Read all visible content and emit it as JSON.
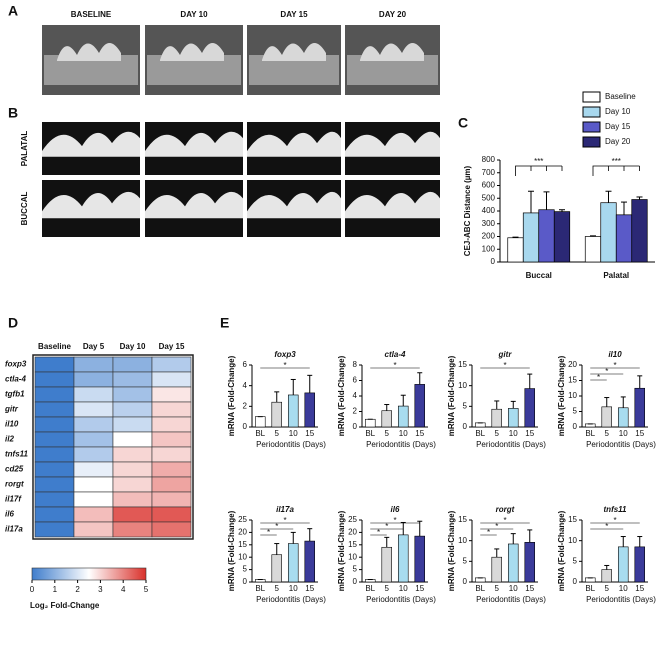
{
  "panels": [
    "A",
    "B",
    "C",
    "D",
    "E"
  ],
  "panel_a": {
    "columns": [
      "BASELINE",
      "DAY 10",
      "DAY 15",
      "DAY 20"
    ]
  },
  "panel_b": {
    "rows": [
      "PALATAL",
      "BUCCAL"
    ]
  },
  "chart_data": [
    {
      "type": "grouped_bar",
      "ylabel": "CEJ-ABC Distance (µm)",
      "categories": [
        "Buccal",
        "Palatal"
      ],
      "series": [
        {
          "name": "Baseline",
          "color": "#ffffff",
          "values": [
            190,
            200
          ],
          "errors": [
            5,
            5
          ]
        },
        {
          "name": "Day 10",
          "color": "#a8d8ee",
          "values": [
            385,
            465
          ],
          "errors": [
            170,
            90
          ]
        },
        {
          "name": "Day 15",
          "color": "#5a5ac8",
          "values": [
            410,
            370
          ],
          "errors": [
            140,
            100
          ]
        },
        {
          "name": "Day 20",
          "color": "#2b2875",
          "values": [
            395,
            490
          ],
          "errors": [
            15,
            20
          ]
        }
      ],
      "significance": [
        {
          "label": "***",
          "category": "Buccal"
        },
        {
          "label": "***",
          "category": "Palatal"
        }
      ],
      "ylim": [
        0,
        800
      ],
      "yticks": [
        0,
        100,
        200,
        300,
        400,
        500,
        600,
        700,
        800
      ]
    },
    {
      "type": "heatmap",
      "columns": [
        "Baseline",
        "Day 5",
        "Day 10",
        "Day 15"
      ],
      "rows": [
        "foxp3",
        "ctla-4",
        "tgfb1",
        "gitr",
        "il10",
        "il2",
        "tnfs11",
        "cd25",
        "rorgt",
        "il17f",
        "il6",
        "il17a"
      ],
      "values": [
        [
          0,
          1.0,
          1.0,
          1.5
        ],
        [
          0,
          1.0,
          1.2,
          2.0
        ],
        [
          0,
          1.8,
          1.3,
          2.8
        ],
        [
          0,
          2.0,
          1.6,
          3.0
        ],
        [
          0,
          1.5,
          1.8,
          3.0
        ],
        [
          0,
          1.3,
          2.5,
          3.2
        ],
        [
          0,
          1.5,
          3.0,
          3.0
        ],
        [
          0,
          2.2,
          3.0,
          3.5
        ],
        [
          0,
          2.5,
          3.0,
          3.6
        ],
        [
          0,
          2.5,
          3.3,
          3.4
        ],
        [
          0,
          3.3,
          4.5,
          4.5
        ],
        [
          0,
          3.2,
          4.0,
          4.2
        ]
      ],
      "clim": [
        0,
        5
      ],
      "colors": [
        "#3f7dcc",
        "#ffffff",
        "#d9302a"
      ],
      "cticks": [
        0,
        1,
        2,
        3,
        4,
        5
      ],
      "colorbar_label": "Log₂ Fold-Change"
    },
    {
      "type": "bar",
      "title": "foxp3",
      "ylabel": "mRNA (Fold-Change)",
      "xlabel": "Periodontitis (Days)",
      "categories": [
        "BL",
        "5",
        "10",
        "15"
      ],
      "colors": [
        "#ffffff",
        "#d9d9d9",
        "#a8dcef",
        "#3b3b9a"
      ],
      "values": [
        1,
        2.4,
        3.1,
        3.3
      ],
      "errors": [
        0,
        1.0,
        1.5,
        1.7
      ],
      "significance": [
        {
          "label": "*",
          "pair": [
            "BL",
            "15"
          ]
        }
      ],
      "ylim": [
        0,
        6
      ],
      "yticks": [
        0,
        2,
        4,
        6
      ]
    },
    {
      "type": "bar",
      "title": "ctla-4",
      "ylabel": "mRNA (Fold-Change)",
      "xlabel": "Periodontitis (Days)",
      "categories": [
        "BL",
        "5",
        "10",
        "15"
      ],
      "colors": [
        "#ffffff",
        "#d9d9d9",
        "#a8dcef",
        "#3b3b9a"
      ],
      "values": [
        1,
        2.1,
        2.7,
        5.5
      ],
      "errors": [
        0,
        0.8,
        1.4,
        1.5
      ],
      "significance": [
        {
          "label": "*",
          "pair": [
            "BL",
            "15"
          ]
        }
      ],
      "ylim": [
        0,
        8
      ],
      "yticks": [
        0,
        2,
        4,
        6,
        8
      ]
    },
    {
      "type": "bar",
      "title": "gitr",
      "ylabel": "mRNA (Fold-Change)",
      "xlabel": "Periodontitis (Days)",
      "categories": [
        "BL",
        "5",
        "10",
        "15"
      ],
      "colors": [
        "#ffffff",
        "#d9d9d9",
        "#a8dcef",
        "#3b3b9a"
      ],
      "values": [
        1,
        4.3,
        4.5,
        9.3
      ],
      "errors": [
        0,
        2,
        1.7,
        3.5
      ],
      "significance": [
        {
          "label": "*",
          "pair": [
            "BL",
            "15"
          ]
        }
      ],
      "ylim": [
        0,
        15
      ],
      "yticks": [
        0,
        5,
        10,
        15
      ]
    },
    {
      "type": "bar",
      "title": "il10",
      "ylabel": "mRNA (Fold-Change)",
      "xlabel": "Periodontitis (Days)",
      "categories": [
        "BL",
        "5",
        "10",
        "15"
      ],
      "colors": [
        "#ffffff",
        "#d9d9d9",
        "#a8dcef",
        "#3b3b9a"
      ],
      "values": [
        1,
        6.5,
        6.2,
        12.5
      ],
      "errors": [
        0,
        3,
        3.5,
        4
      ],
      "significance": [
        {
          "label": "*",
          "pair": [
            "BL",
            "15"
          ]
        },
        {
          "label": "*",
          "pair": [
            "BL",
            "10"
          ]
        },
        {
          "label": "*",
          "pair": [
            "BL",
            "5"
          ]
        }
      ],
      "ylim": [
        0,
        20
      ],
      "yticks": [
        0,
        5,
        10,
        15,
        20
      ]
    },
    {
      "type": "bar",
      "title": "il17a",
      "ylabel": "mRNA (Fold-Change)",
      "xlabel": "Periodontitis (Days)",
      "categories": [
        "BL",
        "5",
        "10",
        "15"
      ],
      "colors": [
        "#ffffff",
        "#d9d9d9",
        "#a8dcef",
        "#3b3b9a"
      ],
      "values": [
        1,
        11,
        15.5,
        16.5
      ],
      "errors": [
        0,
        4.5,
        4.5,
        5
      ],
      "significance": [
        {
          "label": "*",
          "pair": [
            "BL",
            "15"
          ]
        },
        {
          "label": "*",
          "pair": [
            "BL",
            "10"
          ]
        },
        {
          "label": "*",
          "pair": [
            "BL",
            "5"
          ]
        }
      ],
      "ylim": [
        0,
        25
      ],
      "yticks": [
        0,
        5,
        10,
        15,
        20,
        25
      ]
    },
    {
      "type": "bar",
      "title": "il6",
      "ylabel": "mRNA (Fold-Change)",
      "xlabel": "Periodontitis (Days)",
      "categories": [
        "BL",
        "5",
        "10",
        "15"
      ],
      "colors": [
        "#ffffff",
        "#d9d9d9",
        "#a8dcef",
        "#3b3b9a"
      ],
      "values": [
        1,
        14,
        19,
        18.5
      ],
      "errors": [
        0,
        4,
        5,
        6
      ],
      "significance": [
        {
          "label": "*",
          "pair": [
            "BL",
            "15"
          ]
        },
        {
          "label": "*",
          "pair": [
            "BL",
            "10"
          ]
        },
        {
          "label": "*",
          "pair": [
            "BL",
            "5"
          ]
        }
      ],
      "ylim": [
        0,
        25
      ],
      "yticks": [
        0,
        5,
        10,
        15,
        20,
        25
      ]
    },
    {
      "type": "bar",
      "title": "rorgt",
      "ylabel": "mRNA (Fold-Change)",
      "xlabel": "Periodontitis (Days)",
      "categories": [
        "BL",
        "5",
        "10",
        "15"
      ],
      "colors": [
        "#ffffff",
        "#d9d9d9",
        "#a8dcef",
        "#3b3b9a"
      ],
      "values": [
        1,
        6,
        9.2,
        9.6
      ],
      "errors": [
        0,
        2,
        2.5,
        3
      ],
      "significance": [
        {
          "label": "*",
          "pair": [
            "BL",
            "15"
          ]
        },
        {
          "label": "*",
          "pair": [
            "BL",
            "10"
          ]
        },
        {
          "label": "*",
          "pair": [
            "BL",
            "5"
          ]
        }
      ],
      "ylim": [
        0,
        15
      ],
      "yticks": [
        0,
        5,
        10,
        15
      ]
    },
    {
      "type": "bar",
      "title": "tnfs11",
      "ylabel": "mRNA (Fold-Change)",
      "xlabel": "Periodontitis (Days)",
      "categories": [
        "BL",
        "5",
        "10",
        "15"
      ],
      "colors": [
        "#ffffff",
        "#d9d9d9",
        "#a8dcef",
        "#3b3b9a"
      ],
      "values": [
        1,
        3,
        8.5,
        8.5
      ],
      "errors": [
        0,
        1,
        2.5,
        2.5
      ],
      "significance": [
        {
          "label": "*",
          "pair": [
            "BL",
            "15"
          ]
        },
        {
          "label": "*",
          "pair": [
            "BL",
            "10"
          ]
        }
      ],
      "ylim": [
        0,
        15
      ],
      "yticks": [
        0,
        5,
        10,
        15
      ]
    }
  ]
}
